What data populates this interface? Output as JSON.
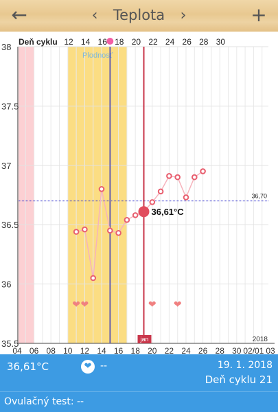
{
  "header": {
    "back_icon": "arrow-left-icon",
    "title": "Teplota",
    "prev_icon": "chevron-left-icon",
    "next_icon": "chevron-right-icon",
    "add_icon": "plus-icon"
  },
  "chart_data": {
    "type": "line",
    "cycle_label": "Deň cyklu",
    "cycle_ticks": [
      "12",
      "14",
      "16",
      "18",
      "20",
      "22",
      "24",
      "26",
      "28",
      "30"
    ],
    "x_ticks": [
      "04",
      "06",
      "08",
      "10",
      "12",
      "14",
      "16",
      "18",
      "20",
      "22",
      "24",
      "26",
      "28",
      "30",
      "02/01",
      "03"
    ],
    "year_label": "2018",
    "y_ticks": [
      "38",
      "37.5",
      "37",
      "36.5",
      "36",
      "35.5"
    ],
    "ylim": [
      35.5,
      38
    ],
    "fertile_label": "Plodnosť",
    "coverline": {
      "value": "36,70",
      "y": 36.7
    },
    "ovulation_day": 15,
    "today_marker": "jan",
    "selected": {
      "x": 19,
      "y": 36.61,
      "label": "36,61°C"
    },
    "series": [
      {
        "x": [
          11,
          12,
          13,
          14,
          15,
          16,
          17,
          18,
          19,
          20,
          21,
          22,
          23,
          24,
          25,
          26
        ],
        "y": [
          36.44,
          36.46,
          36.05,
          36.8,
          36.45,
          36.43,
          36.54,
          36.58,
          36.61,
          36.69,
          36.78,
          36.91,
          36.9,
          36.73,
          36.9,
          36.95
        ]
      }
    ],
    "hearts_x": [
      11,
      12,
      20,
      23
    ],
    "menstruation_range": [
      4,
      6
    ],
    "fertile_range": [
      10,
      17
    ],
    "colors": {
      "temp": "#e85f6f",
      "fertile": "#fbdd83",
      "menstruation": "#fcd0d3",
      "ovulation": "#3a3ab8",
      "today": "#c9364a"
    }
  },
  "bottom": {
    "temp_value": "36,61°C",
    "heart_icon": "heart-icon",
    "intercourse_value": "--",
    "date": "19. 1. 2018",
    "cycle_day": "Deň cyklu 21",
    "ovulation_test": "Ovulačný test: --"
  }
}
